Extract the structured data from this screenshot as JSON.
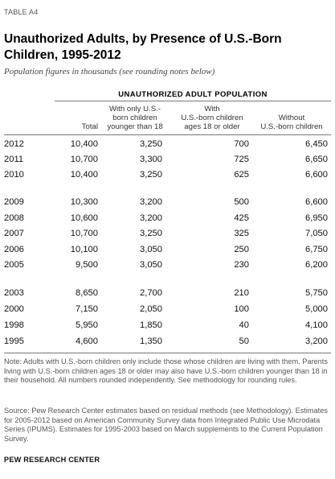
{
  "table_tag": "TABLE A4",
  "title": "Unauthorized Adults, by Presence of U.S.-Born Children, 1995-2012",
  "subtitle": "Population figures in thousands (see rounding notes below)",
  "group_header": "UNAUTHORIZED ADULT POPULATION",
  "columns": {
    "total": "Total",
    "young_line1": "With only U.S.-",
    "young_line2": "born children",
    "young_line3": "younger than 18",
    "old_line1": "With",
    "old_line2": "U.S.-born children",
    "old_line3": "ages 18 or older",
    "without_line1": "Without",
    "without_line2": "U.S.-born children"
  },
  "rows": [
    {
      "year": "2012",
      "total": "10,400",
      "young": "3,250",
      "old": "700",
      "without": "6,450"
    },
    {
      "year": "2011",
      "total": "10,700",
      "young": "3,300",
      "old": "725",
      "without": "6,650"
    },
    {
      "year": "2010",
      "total": "10,400",
      "young": "3,250",
      "old": "625",
      "without": "6,600"
    },
    {
      "year": "2009",
      "total": "10,300",
      "young": "3,200",
      "old": "500",
      "without": "6,600"
    },
    {
      "year": "2008",
      "total": "10,600",
      "young": "3,200",
      "old": "425",
      "without": "6,950"
    },
    {
      "year": "2007",
      "total": "10,700",
      "young": "3,250",
      "old": "325",
      "without": "7,050"
    },
    {
      "year": "2006",
      "total": "10,100",
      "young": "3,050",
      "old": "250",
      "without": "6,750"
    },
    {
      "year": "2005",
      "total": "9,500",
      "young": "3,050",
      "old": "230",
      "without": "6,200"
    },
    {
      "year": "2003",
      "total": "8,650",
      "young": "2,700",
      "old": "210",
      "without": "5,750"
    },
    {
      "year": "2000",
      "total": "7,150",
      "young": "2,050",
      "old": "100",
      "without": "5,000"
    },
    {
      "year": "1998",
      "total": "5,950",
      "young": "1,850",
      "old": "40",
      "without": "4,100"
    },
    {
      "year": "1995",
      "total": "4,600",
      "young": "1,350",
      "old": "50",
      "without": "3,200"
    }
  ],
  "note": "Note: Adults with U.S.-born children only include those whose children are living with them. Parents living with U.S.-born children ages 18 or older may also have U.S.-born children younger than 18 in their household. All numbers rounded independently. See methodology for rounding rules.",
  "source": "Source: Pew Research Center estimates based on residual methods (see Methodology). Estimates for 2005-2012 based on American Community Survey data from Integrated Public Use Microdata Series (IPUMS). Estimates for 1995-2003 based on March supplements to the Current Population Survey.",
  "footer": "PEW RESEARCH CENTER"
}
